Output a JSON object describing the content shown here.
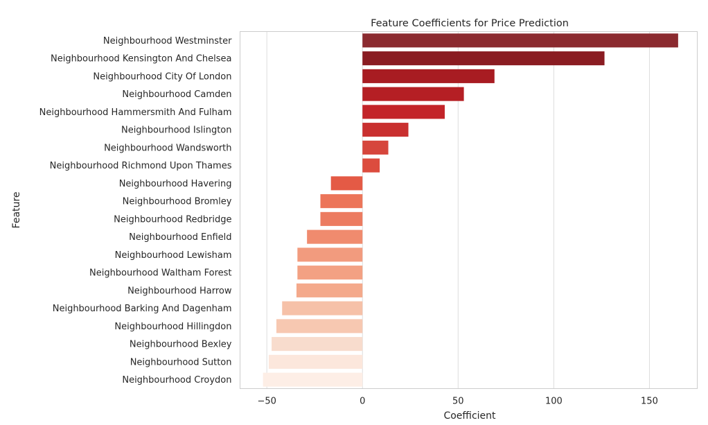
{
  "chart_data": {
    "type": "bar",
    "orientation": "horizontal",
    "title": "Feature Coefficients for Price Prediction",
    "xlabel": "Coefficient",
    "ylabel": "Feature",
    "xlim": [
      -64,
      175
    ],
    "xticks": [
      -50,
      0,
      50,
      100,
      150
    ],
    "xtick_labels": [
      "−50",
      "0",
      "50",
      "100",
      "150"
    ],
    "grid": true,
    "categories": [
      "Neighbourhood Westminster",
      "Neighbourhood Kensington And Chelsea",
      "Neighbourhood City Of London",
      "Neighbourhood Camden",
      "Neighbourhood Hammersmith And Fulham",
      "Neighbourhood Islington",
      "Neighbourhood Wandsworth",
      "Neighbourhood Richmond Upon Thames",
      "Neighbourhood Havering",
      "Neighbourhood Bromley",
      "Neighbourhood Redbridge",
      "Neighbourhood Enfield",
      "Neighbourhood Lewisham",
      "Neighbourhood Waltham Forest",
      "Neighbourhood Harrow",
      "Neighbourhood Barking And Dagenham",
      "Neighbourhood Hillingdon",
      "Neighbourhood Bexley",
      "Neighbourhood Sutton",
      "Neighbourhood Croydon"
    ],
    "values": [
      165,
      126.5,
      69,
      53,
      43,
      24,
      13.5,
      9,
      -16.5,
      -22,
      -22,
      -29,
      -34,
      -34,
      -34.5,
      -42,
      -45,
      -47.5,
      -49,
      -52
    ],
    "colors": [
      "#8b2a2f",
      "#8a1c22",
      "#a81c22",
      "#b51f24",
      "#c32429",
      "#c9302f",
      "#d6463c",
      "#dc4c3e",
      "#e45a45",
      "#ec7559",
      "#ec7b60",
      "#f08b6e",
      "#f29b7e",
      "#f3a183",
      "#f4a98b",
      "#f6c1a8",
      "#f7c8b1",
      "#f8dccd",
      "#fce7dc",
      "#fdeee6"
    ]
  }
}
